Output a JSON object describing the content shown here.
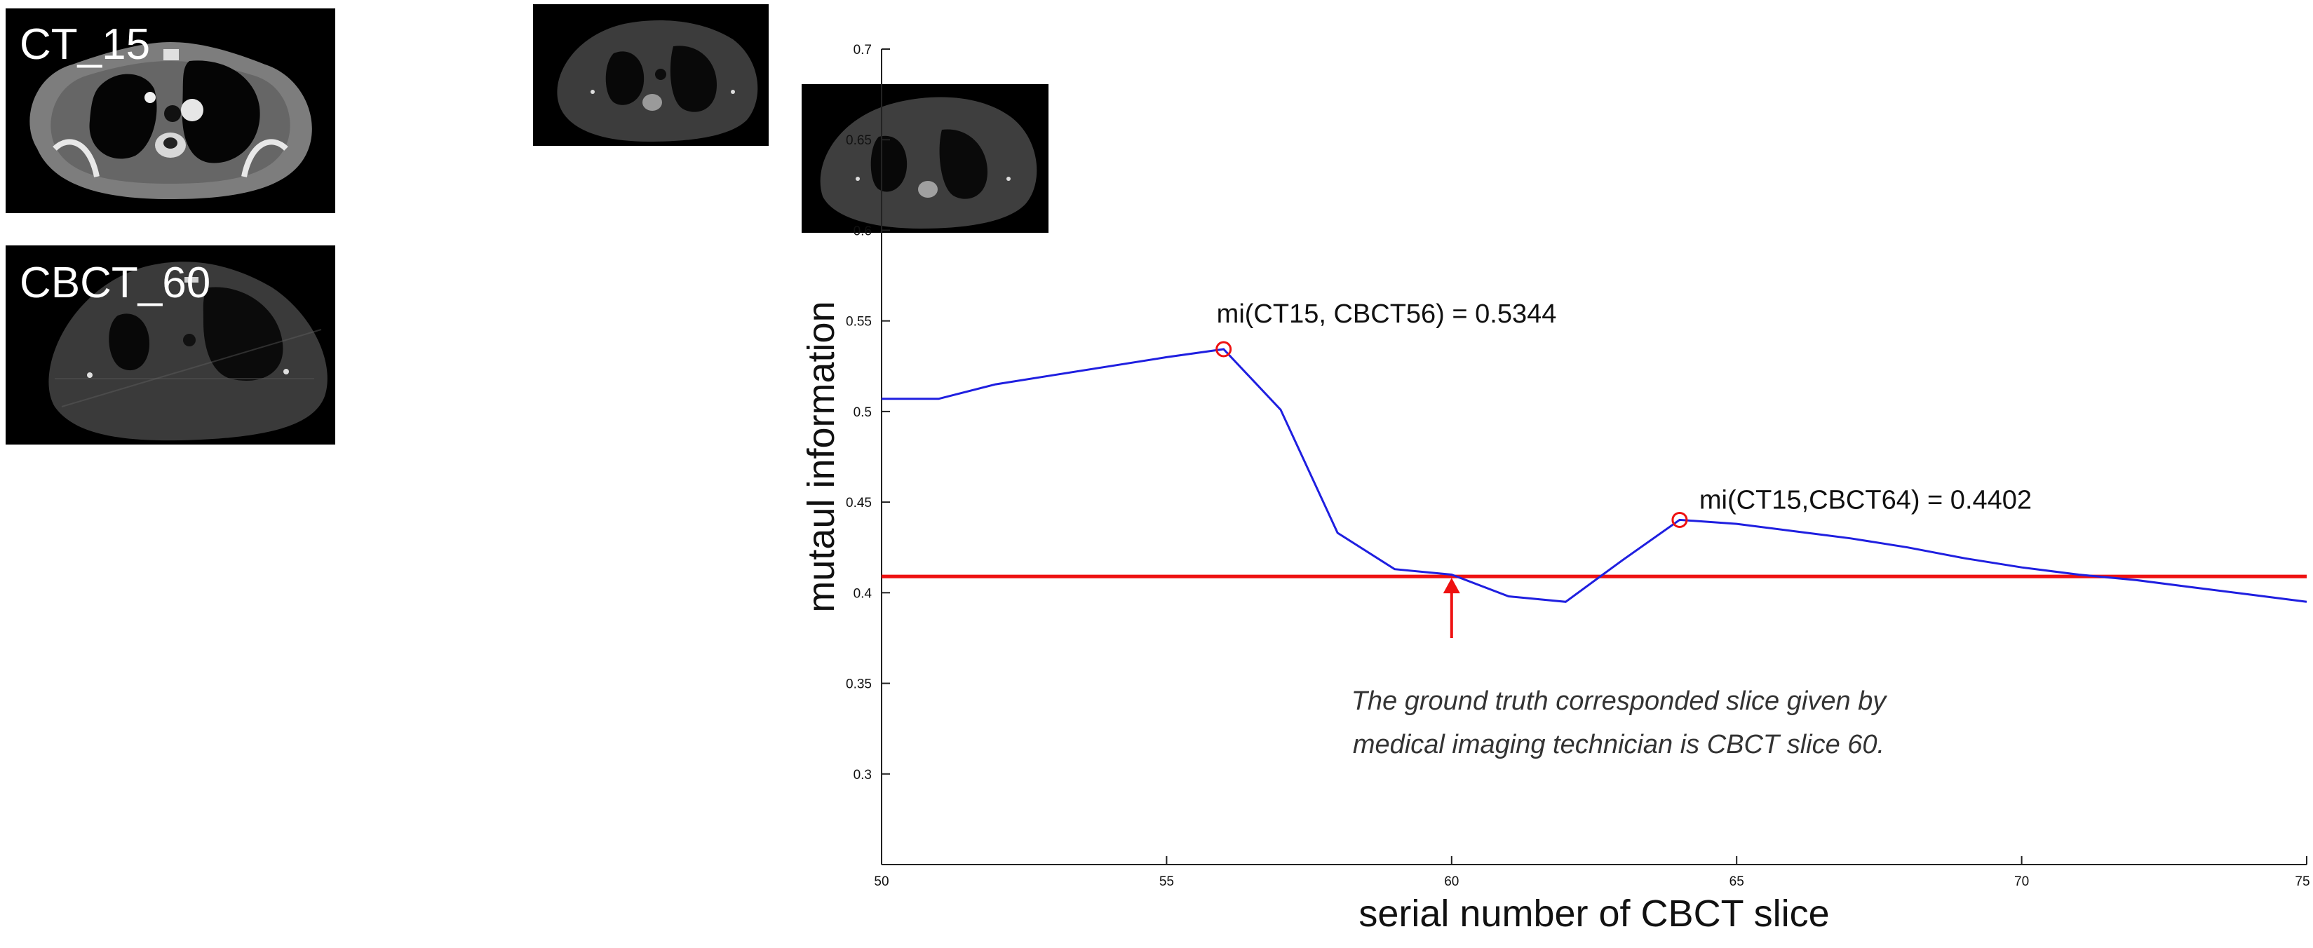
{
  "images": {
    "ct_label": "CT_15",
    "cbct_label": "CBCT_60"
  },
  "chart_data": {
    "type": "line",
    "xlabel": "serial number of CBCT slice",
    "ylabel": "mutaul information",
    "xlim": [
      50,
      75
    ],
    "ylim": [
      0.25,
      0.7
    ],
    "xticks": [
      50,
      55,
      60,
      65,
      70,
      75
    ],
    "yticks": [
      0.3,
      0.35,
      0.4,
      0.45,
      0.5,
      0.55,
      0.6,
      0.65,
      0.7
    ],
    "grid": false,
    "series": [
      {
        "color": "#1f1fe0",
        "x": [
          50,
          51,
          52,
          53,
          54,
          55,
          56,
          57,
          58,
          59,
          60,
          61,
          62,
          63,
          64,
          65,
          66,
          67,
          68,
          69,
          70,
          71,
          72,
          73,
          74,
          75
        ],
        "y": [
          0.507,
          0.507,
          0.515,
          0.52,
          0.525,
          0.53,
          0.5344,
          0.501,
          0.433,
          0.413,
          0.41,
          0.398,
          0.395,
          0.418,
          0.4402,
          0.438,
          0.434,
          0.43,
          0.425,
          0.419,
          0.414,
          0.41,
          0.407,
          0.403,
          0.399,
          0.395
        ]
      }
    ],
    "threshold": {
      "y": 0.409,
      "color": "#ee1111"
    },
    "markers": [
      {
        "x": 56,
        "y": 0.5344,
        "label": "mi(CT15, CBCT56) = 0.5344"
      },
      {
        "x": 64,
        "y": 0.4402,
        "label": "mi(CT15,CBCT64) = 0.4402"
      }
    ],
    "arrow": {
      "x": 60,
      "from_y": 0.375,
      "to_y": 0.409
    },
    "note_lines": [
      "The ground truth corresponded slice given by",
      "medical imaging technician is CBCT slice 60."
    ],
    "colors": {
      "line": "#1f1fe0",
      "accent": "#ee1111",
      "axis": "#222222"
    }
  }
}
